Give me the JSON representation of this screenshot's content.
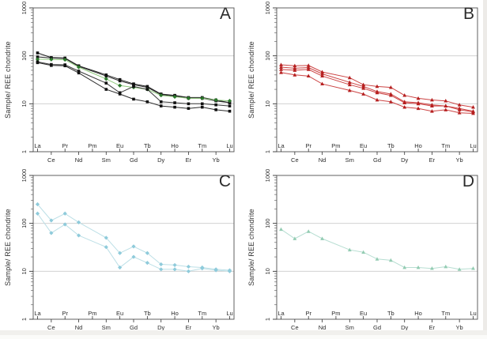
{
  "figure": {
    "y_axis_label": "Sample/ REE chondrite",
    "y_tick_labels": [
      "1",
      "10",
      "100",
      "1000"
    ],
    "frame_color": "#4f4f4f",
    "grid_color": "#cbcbcb",
    "tick_text_color": "#2b2b2b"
  },
  "chart_data": [
    {
      "type": "line",
      "panel_label": "A",
      "ylabel": "Sample/ REE chondrite",
      "y_scale": "log",
      "ylim": [
        1,
        1000
      ],
      "gridlines_y": [
        10,
        100
      ],
      "x_categories": [
        "La",
        "Ce",
        "Pr",
        "Nd",
        "Pm",
        "Sm",
        "Eu",
        "Gd",
        "Tb",
        "Dy",
        "Ho",
        "Er",
        "Tm",
        "Yb",
        "Lu"
      ],
      "legend": "none",
      "series": [
        {
          "color": "#1e1e1e",
          "marker": "square",
          "marker_color": "#111111",
          "values": [
            115,
            92,
            90,
            62,
            null,
            40,
            32,
            26,
            23,
            16,
            15,
            13.5,
            13.5,
            12,
            10.5
          ]
        },
        {
          "color": "#2a2a2a",
          "marker": "square",
          "marker_color": "#111111",
          "values": [
            95,
            90,
            88,
            60,
            null,
            38,
            30,
            25,
            22,
            15.5,
            14.5,
            13,
            13,
            11.5,
            10.5
          ]
        },
        {
          "color": "#8fc97c",
          "marker": "diamond",
          "marker_color": "#2d7a2d",
          "values": [
            85,
            84,
            83,
            58,
            null,
            33,
            24,
            22,
            20,
            15,
            14,
            13,
            13,
            12,
            11.5
          ]
        },
        {
          "color": "#3a3a3a",
          "marker": "square",
          "marker_color": "#111111",
          "values": [
            75,
            66,
            65,
            48,
            null,
            27,
            17,
            23,
            20,
            11,
            10.5,
            10,
            10,
            9.5,
            9
          ]
        },
        {
          "color": "#2a2a2a",
          "marker": "square",
          "marker_color": "#111111",
          "values": [
            72,
            63,
            62,
            44,
            null,
            20,
            16,
            12.5,
            11,
            9,
            8.5,
            8,
            8.5,
            7.5,
            7
          ]
        }
      ]
    },
    {
      "type": "line",
      "panel_label": "B",
      "ylabel": "Sample/ REE chondrite",
      "y_scale": "log",
      "ylim": [
        1,
        1000
      ],
      "gridlines_y": [
        10,
        100
      ],
      "x_categories": [
        "La",
        "Ce",
        "Pr",
        "Nd",
        "Pm",
        "Sm",
        "Eu",
        "Gd",
        "Tb",
        "Dy",
        "Ho",
        "Er",
        "Tm",
        "Yb",
        "Lu"
      ],
      "legend": "none",
      "series": [
        {
          "color": "#cc4444",
          "marker": "triangle",
          "marker_color": "#b51f1f",
          "values": [
            65,
            62,
            63,
            46,
            null,
            35,
            25,
            23,
            22,
            15,
            13,
            12,
            11.5,
            9.5,
            8.5
          ]
        },
        {
          "color": "#cc4444",
          "marker": "triangle",
          "marker_color": "#b51f1f",
          "values": [
            58,
            55,
            57,
            42,
            null,
            28,
            23,
            18,
            16,
            11,
            10.5,
            9.5,
            9,
            8,
            7
          ]
        },
        {
          "color": "#cc4444",
          "marker": "triangle",
          "marker_color": "#b51f1f",
          "values": [
            52,
            50,
            52,
            38,
            null,
            25,
            21,
            17,
            15,
            10.5,
            10,
            9,
            9,
            7.5,
            6.8
          ]
        },
        {
          "color": "#cc4444",
          "marker": "triangle",
          "marker_color": "#b51f1f",
          "values": [
            45,
            40,
            38,
            26,
            null,
            19,
            16,
            12,
            11,
            8.5,
            8,
            7,
            7.5,
            6.5,
            6.3
          ]
        }
      ]
    },
    {
      "type": "line",
      "panel_label": "C",
      "ylabel": "Sample/ REE chondrite",
      "y_scale": "log",
      "ylim": [
        1,
        1000
      ],
      "gridlines_y": [
        10,
        100
      ],
      "x_categories": [
        "La",
        "Ce",
        "Pr",
        "Nd",
        "Pm",
        "Sm",
        "Eu",
        "Gd",
        "Tb",
        "Dy",
        "Ho",
        "Er",
        "Tm",
        "Yb",
        "Lu"
      ],
      "legend": "none",
      "series": [
        {
          "color": "#bcdfe6",
          "marker": "diamond",
          "marker_color": "#8fcbdb",
          "values": [
            250,
            115,
            160,
            105,
            null,
            50,
            24,
            33,
            24,
            14,
            13.5,
            12.5,
            12,
            11,
            10.5
          ]
        },
        {
          "color": "#bcdfe6",
          "marker": "diamond",
          "marker_color": "#8fcbdb",
          "values": [
            160,
            63,
            95,
            56,
            null,
            32,
            12,
            20,
            15,
            11,
            11,
            10,
            11.5,
            10.5,
            10
          ]
        }
      ]
    },
    {
      "type": "line",
      "panel_label": "D",
      "ylabel": "Sample/ REE chondrite",
      "y_scale": "log",
      "ylim": [
        1,
        1000
      ],
      "gridlines_y": [
        10,
        100
      ],
      "x_categories": [
        "La",
        "Ce",
        "Pr",
        "Nd",
        "Pm",
        "Sm",
        "Eu",
        "Gd",
        "Tb",
        "Dy",
        "Ho",
        "Er",
        "Tm",
        "Yb",
        "Lu"
      ],
      "legend": "none",
      "series": [
        {
          "color": "#b7ded2",
          "marker": "triangle",
          "marker_color": "#93ccb2",
          "values": [
            75,
            48,
            68,
            48,
            null,
            28,
            25,
            18,
            17,
            12,
            12,
            11.5,
            12.5,
            11,
            11.5
          ]
        }
      ]
    }
  ]
}
